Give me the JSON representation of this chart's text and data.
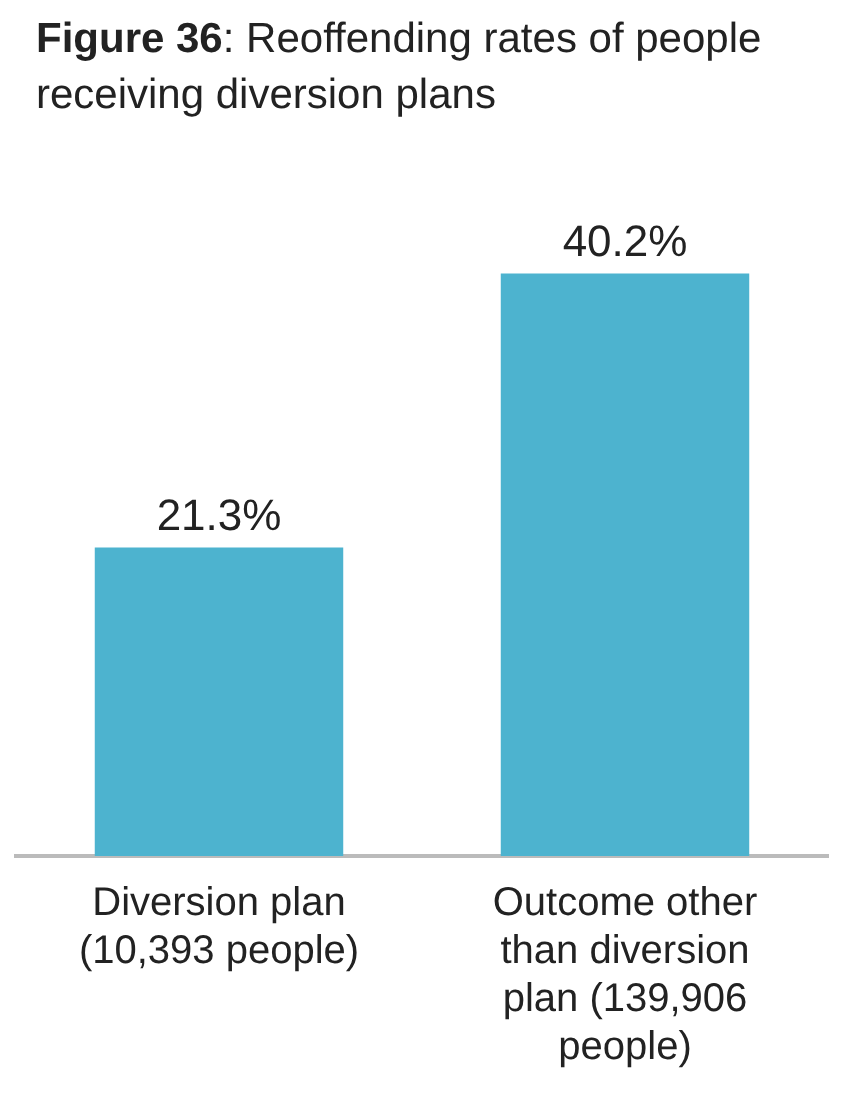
{
  "chart_data": {
    "type": "bar",
    "title": "Figure 36: Reoffending rates of people receiving diversion plans",
    "categories": [
      "Diversion plan (10,393 people)",
      "Outcome other than diversion plan (139,906 people)"
    ],
    "values": [
      21.3,
      40.2
    ],
    "color": "#4db3cf",
    "value_labels": [
      "21.3%",
      "40.2%"
    ],
    "grid": false,
    "legend": false,
    "tick_labels": "x"
  }
}
